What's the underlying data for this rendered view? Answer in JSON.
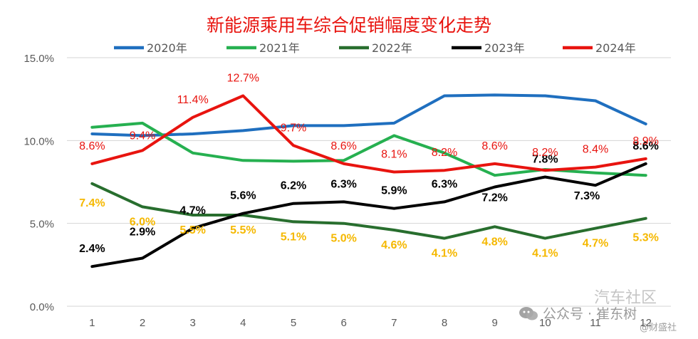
{
  "chart_data": {
    "type": "line",
    "title": "新能源乘用车综合促销幅度变化走势",
    "xlabel": "",
    "ylabel": "",
    "categories": [
      "1",
      "2",
      "3",
      "4",
      "5",
      "6",
      "7",
      "8",
      "9",
      "10",
      "11",
      "12"
    ],
    "ylim": [
      0,
      15
    ],
    "yticks": [
      0,
      5,
      10,
      15
    ],
    "ytick_labels": [
      "0.0%",
      "5.0%",
      "10.0%",
      "15.0%"
    ],
    "grid": "horizontal",
    "legend_position": "top",
    "series": [
      {
        "name": "2020年",
        "color": "#1f6fbf",
        "values": [
          10.4,
          10.3,
          10.4,
          10.6,
          10.9,
          10.9,
          11.05,
          12.7,
          12.75,
          12.7,
          12.4,
          11.0
        ],
        "labels": null
      },
      {
        "name": "2021年",
        "color": "#26b050",
        "values": [
          10.8,
          11.05,
          9.25,
          8.8,
          8.75,
          8.8,
          10.3,
          9.25,
          7.9,
          8.25,
          8.05,
          7.9
        ],
        "labels": null
      },
      {
        "name": "2022年",
        "color": "#286e2e",
        "values": [
          7.4,
          6.0,
          5.5,
          5.5,
          5.1,
          5.0,
          4.6,
          4.1,
          4.8,
          4.1,
          4.7,
          5.3
        ],
        "labels": [
          "7.4%",
          "6.0%",
          "5.5%",
          "5.5%",
          "5.1%",
          "5.0%",
          "4.6%",
          "4.1%",
          "4.8%",
          "4.1%",
          "4.7%",
          "5.3%"
        ],
        "label_color": "#f5b800"
      },
      {
        "name": "2023年",
        "color": "#000000",
        "values": [
          2.4,
          2.9,
          4.7,
          5.6,
          6.2,
          6.3,
          5.9,
          6.3,
          7.2,
          7.8,
          7.3,
          8.6
        ],
        "labels": [
          "2.4%",
          "2.9%",
          "4.7%",
          "5.6%",
          "6.2%",
          "6.3%",
          "5.9%",
          "6.3%",
          "7.2%",
          "7.8%",
          "7.3%",
          "8.6%"
        ],
        "label_color": "#000000"
      },
      {
        "name": "2024年",
        "color": "#e8140f",
        "values": [
          8.6,
          9.4,
          11.4,
          12.7,
          9.7,
          8.6,
          8.1,
          8.2,
          8.6,
          8.2,
          8.4,
          8.9
        ],
        "labels": [
          "8.6%",
          "9.4%",
          "11.4%",
          "12.7%",
          "9.7%",
          "8.6%",
          "8.1%",
          "8.2%",
          "8.6%",
          "8.2%",
          "8.4%",
          "8.9%"
        ],
        "label_color": "#e8140f"
      }
    ]
  },
  "watermarks": {
    "wechat": "公众号 · 崔东树",
    "forum": "汽车社区",
    "app": "@财盛社"
  }
}
